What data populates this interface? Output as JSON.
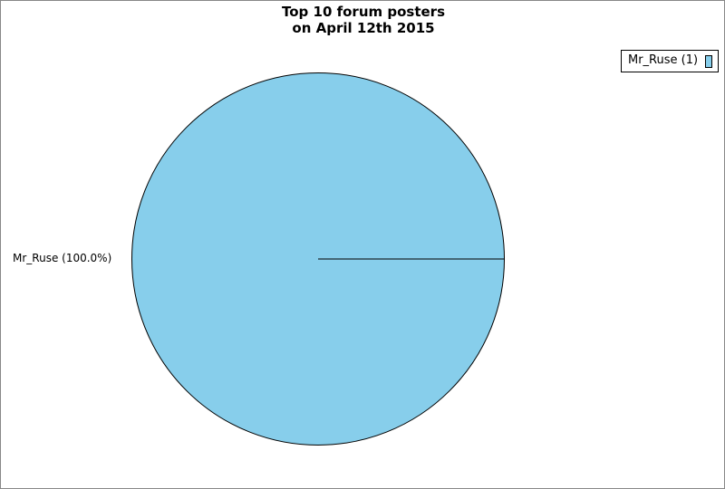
{
  "chart_data": {
    "type": "pie",
    "title": "Top 10 forum posters\non April 12th 2015",
    "title_lines": [
      "Top 10 forum posters",
      "on April 12th 2015"
    ],
    "slices": [
      {
        "name": "Mr_Ruse",
        "value": 1,
        "percent": 100.0,
        "label": "Mr_Ruse (100.0%)",
        "legend_label": "Mr_Ruse (1)",
        "color": "#87ceeb"
      }
    ],
    "legend_placement": "top-right"
  }
}
